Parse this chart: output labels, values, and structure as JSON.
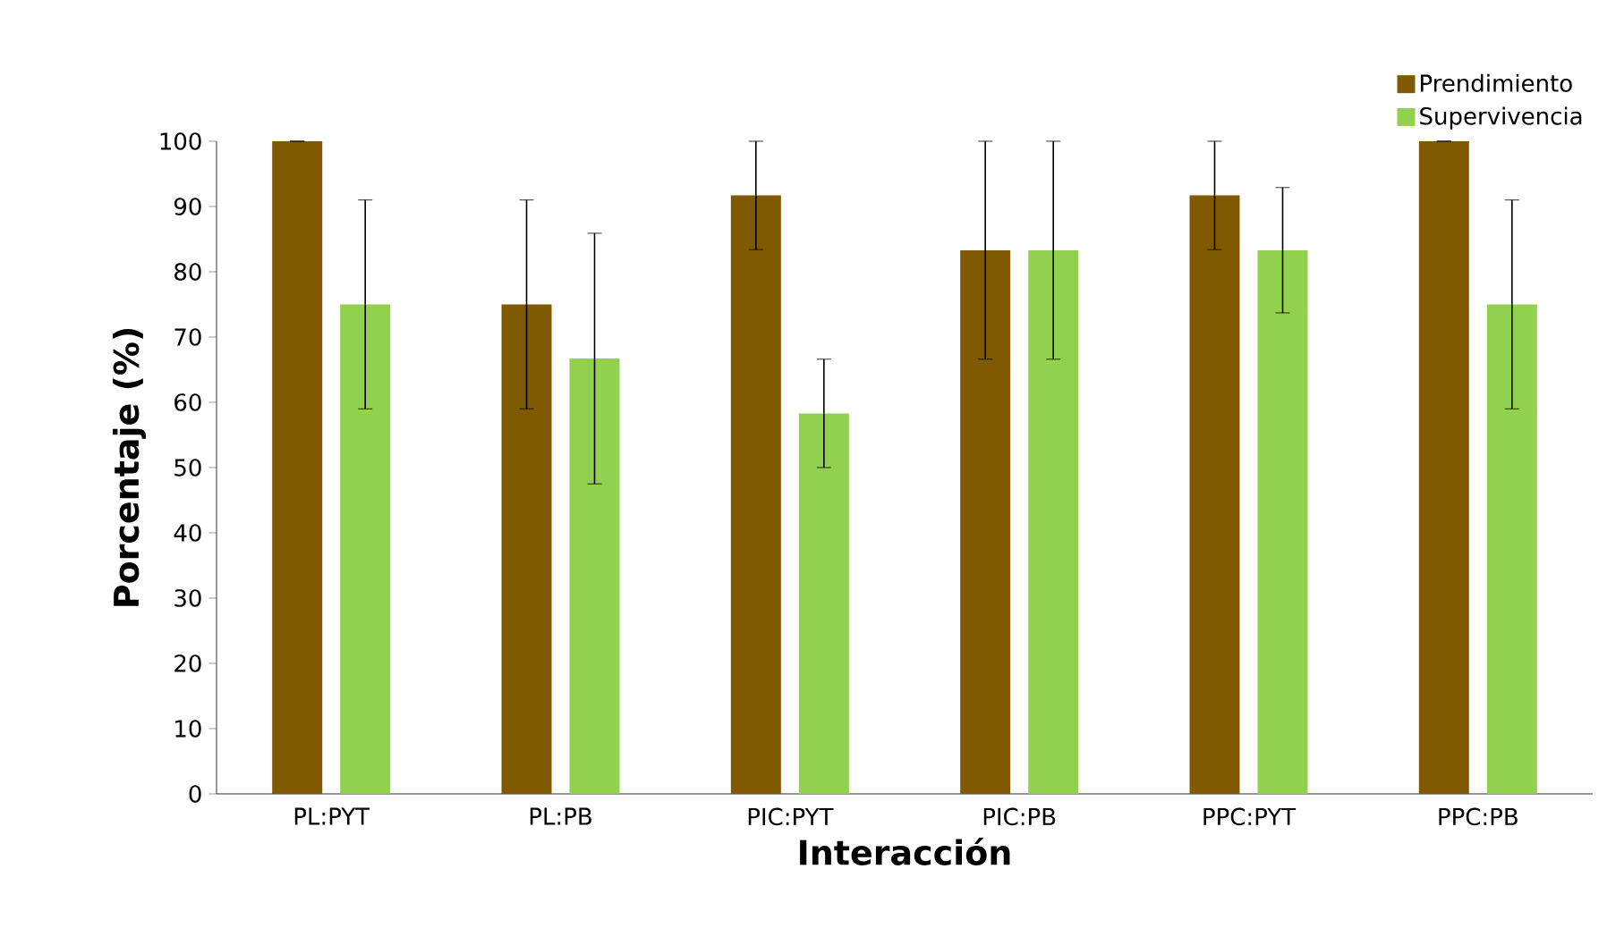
{
  "chart_data": {
    "type": "bar",
    "xlabel": "Interacción",
    "ylabel": "Porcentaje (%)",
    "categories": [
      "PL:PYT",
      "PL:PB",
      "PIC:PYT",
      "PIC:PB",
      "PPC:PYT",
      "PPC:PB"
    ],
    "series": [
      {
        "name": "Prendimiento",
        "color": "#7f5a00",
        "values": [
          100,
          75,
          91.7,
          83.3,
          91.7,
          100
        ],
        "errors": [
          0,
          16,
          8.3,
          16.7,
          8.3,
          0
        ]
      },
      {
        "name": "Supervivencia",
        "color": "#92d050",
        "values": [
          75,
          66.7,
          58.3,
          83.3,
          83.3,
          75
        ],
        "errors": [
          16,
          19.2,
          8.3,
          16.7,
          9.6,
          16
        ]
      }
    ],
    "ylim": [
      0,
      100
    ],
    "yticks": [
      0,
      10,
      20,
      30,
      40,
      50,
      60,
      70,
      80,
      90,
      100
    ],
    "grid": false,
    "legend": "top right"
  }
}
